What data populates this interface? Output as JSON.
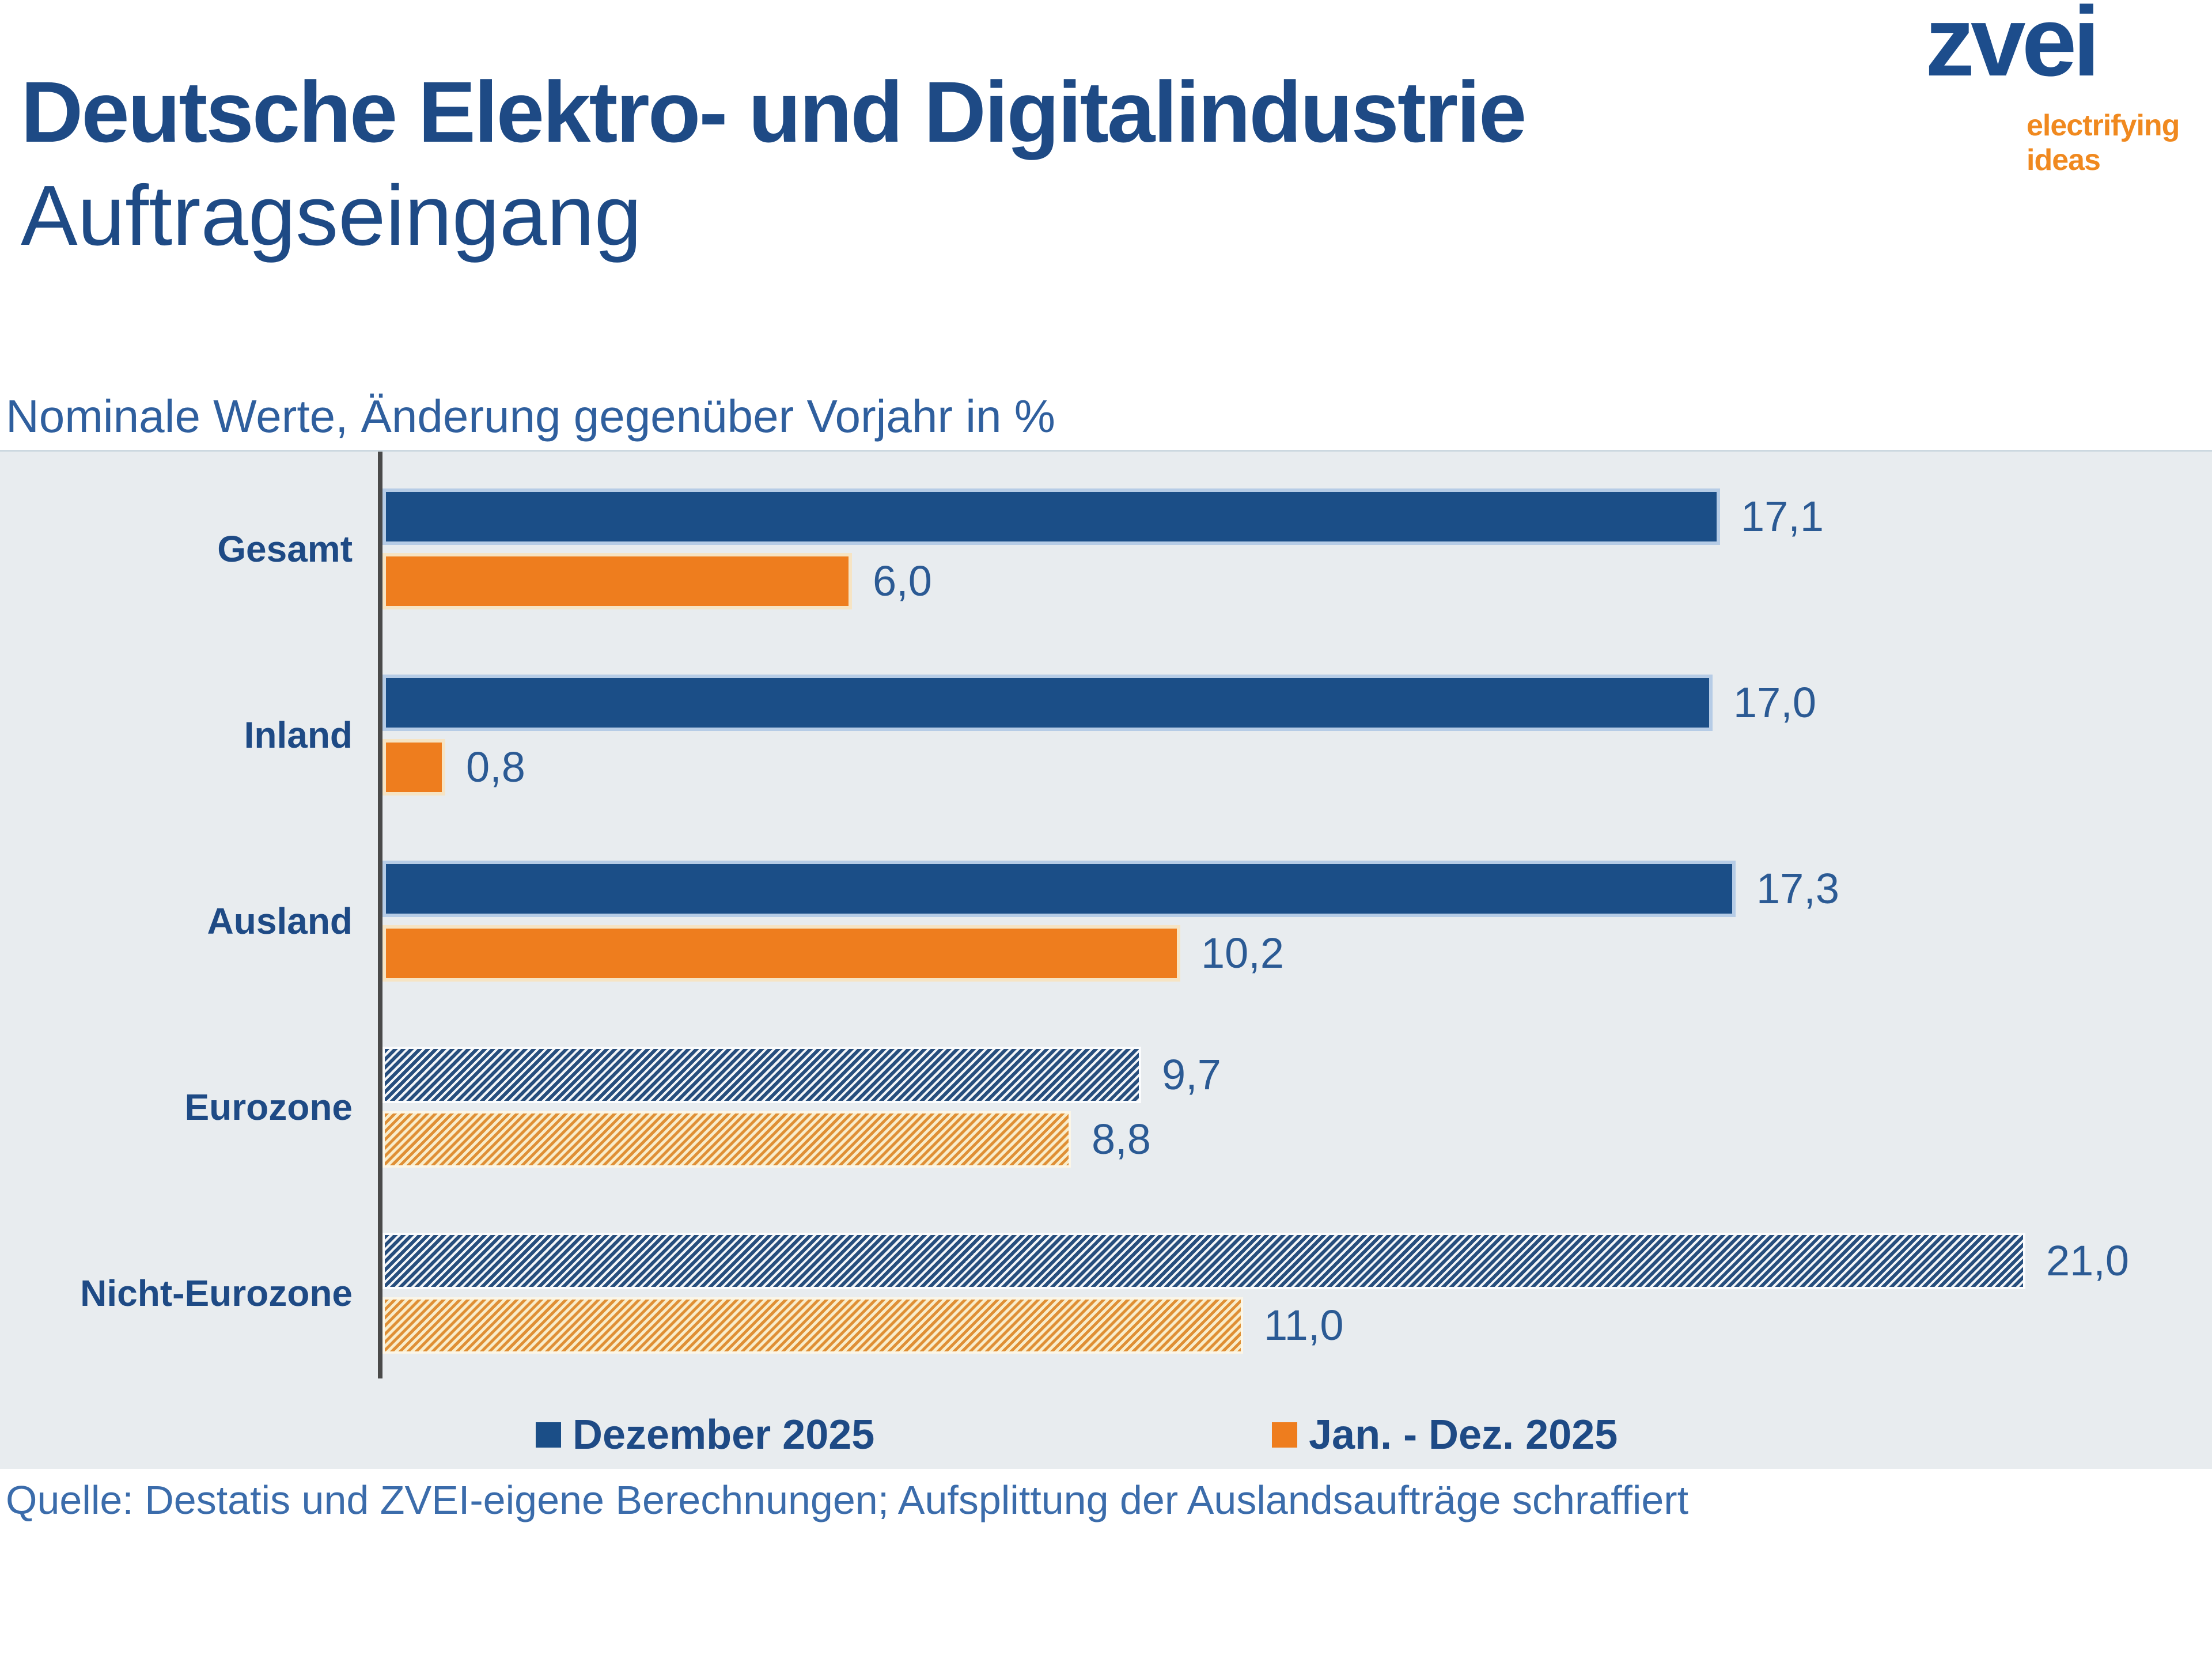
{
  "header": {
    "title_line1": "Deutsche Elektro- und Digitalindustrie",
    "title_line2": "Auftragseingang"
  },
  "logo": {
    "brand": "zvei",
    "tagline_line1": "electrifying",
    "tagline_line2": "ideas"
  },
  "subtitle": "Nominale Werte, Änderung gegenüber Vorjahr in %",
  "chart_data": {
    "type": "bar",
    "orientation": "horizontal",
    "title": "Auftragseingang",
    "xlabel": "Änderung gegenüber Vorjahr in %",
    "ylabel": "",
    "xlim": [
      0,
      22
    ],
    "grid": false,
    "legend_position": "bottom",
    "categories": [
      "Gesamt",
      "Inland",
      "Ausland",
      "Eurozone",
      "Nicht-Eurozone"
    ],
    "hatched": [
      false,
      false,
      false,
      true,
      true
    ],
    "series": [
      {
        "name": "Dezember 2025",
        "color": "#1b4e87",
        "values": [
          17.1,
          17.0,
          17.3,
          9.7,
          21.0
        ],
        "labels": [
          "17,1",
          "17,0",
          "17,3",
          "9,7",
          "21,0"
        ]
      },
      {
        "name": "Jan. - Dez. 2025",
        "color": "#ee7d1e",
        "values": [
          6.0,
          0.8,
          10.2,
          8.8,
          11.0
        ],
        "labels": [
          "6,0",
          "0,8",
          "10,2",
          "8,8",
          "11,0"
        ]
      }
    ]
  },
  "legend": [
    {
      "label": "Dezember 2025",
      "color": "#1b4e87"
    },
    {
      "label": "Jan. - Dez. 2025",
      "color": "#ee7d1e"
    }
  ],
  "source": "Quelle: Destatis und ZVEI-eigene Berechnungen; Aufsplittung der Auslandsaufträge schraffiert",
  "colors": {
    "brand_blue": "#1b4e87",
    "brand_orange": "#ee7d1e",
    "hatch_blue_stripe": "#274e7d",
    "hatch_orange_stripe": "#df8f35",
    "hatch_orange_bg": "#f9edcb",
    "chart_background": "#e8ecef",
    "text_blue": "#1e4a85",
    "value_text_blue": "#2b5a94",
    "subtitle_blue": "#2f5f9e",
    "source_blue": "#3b6cab",
    "tagline_orange": "#f0891f",
    "axis_gray": "#4a4a4a"
  }
}
